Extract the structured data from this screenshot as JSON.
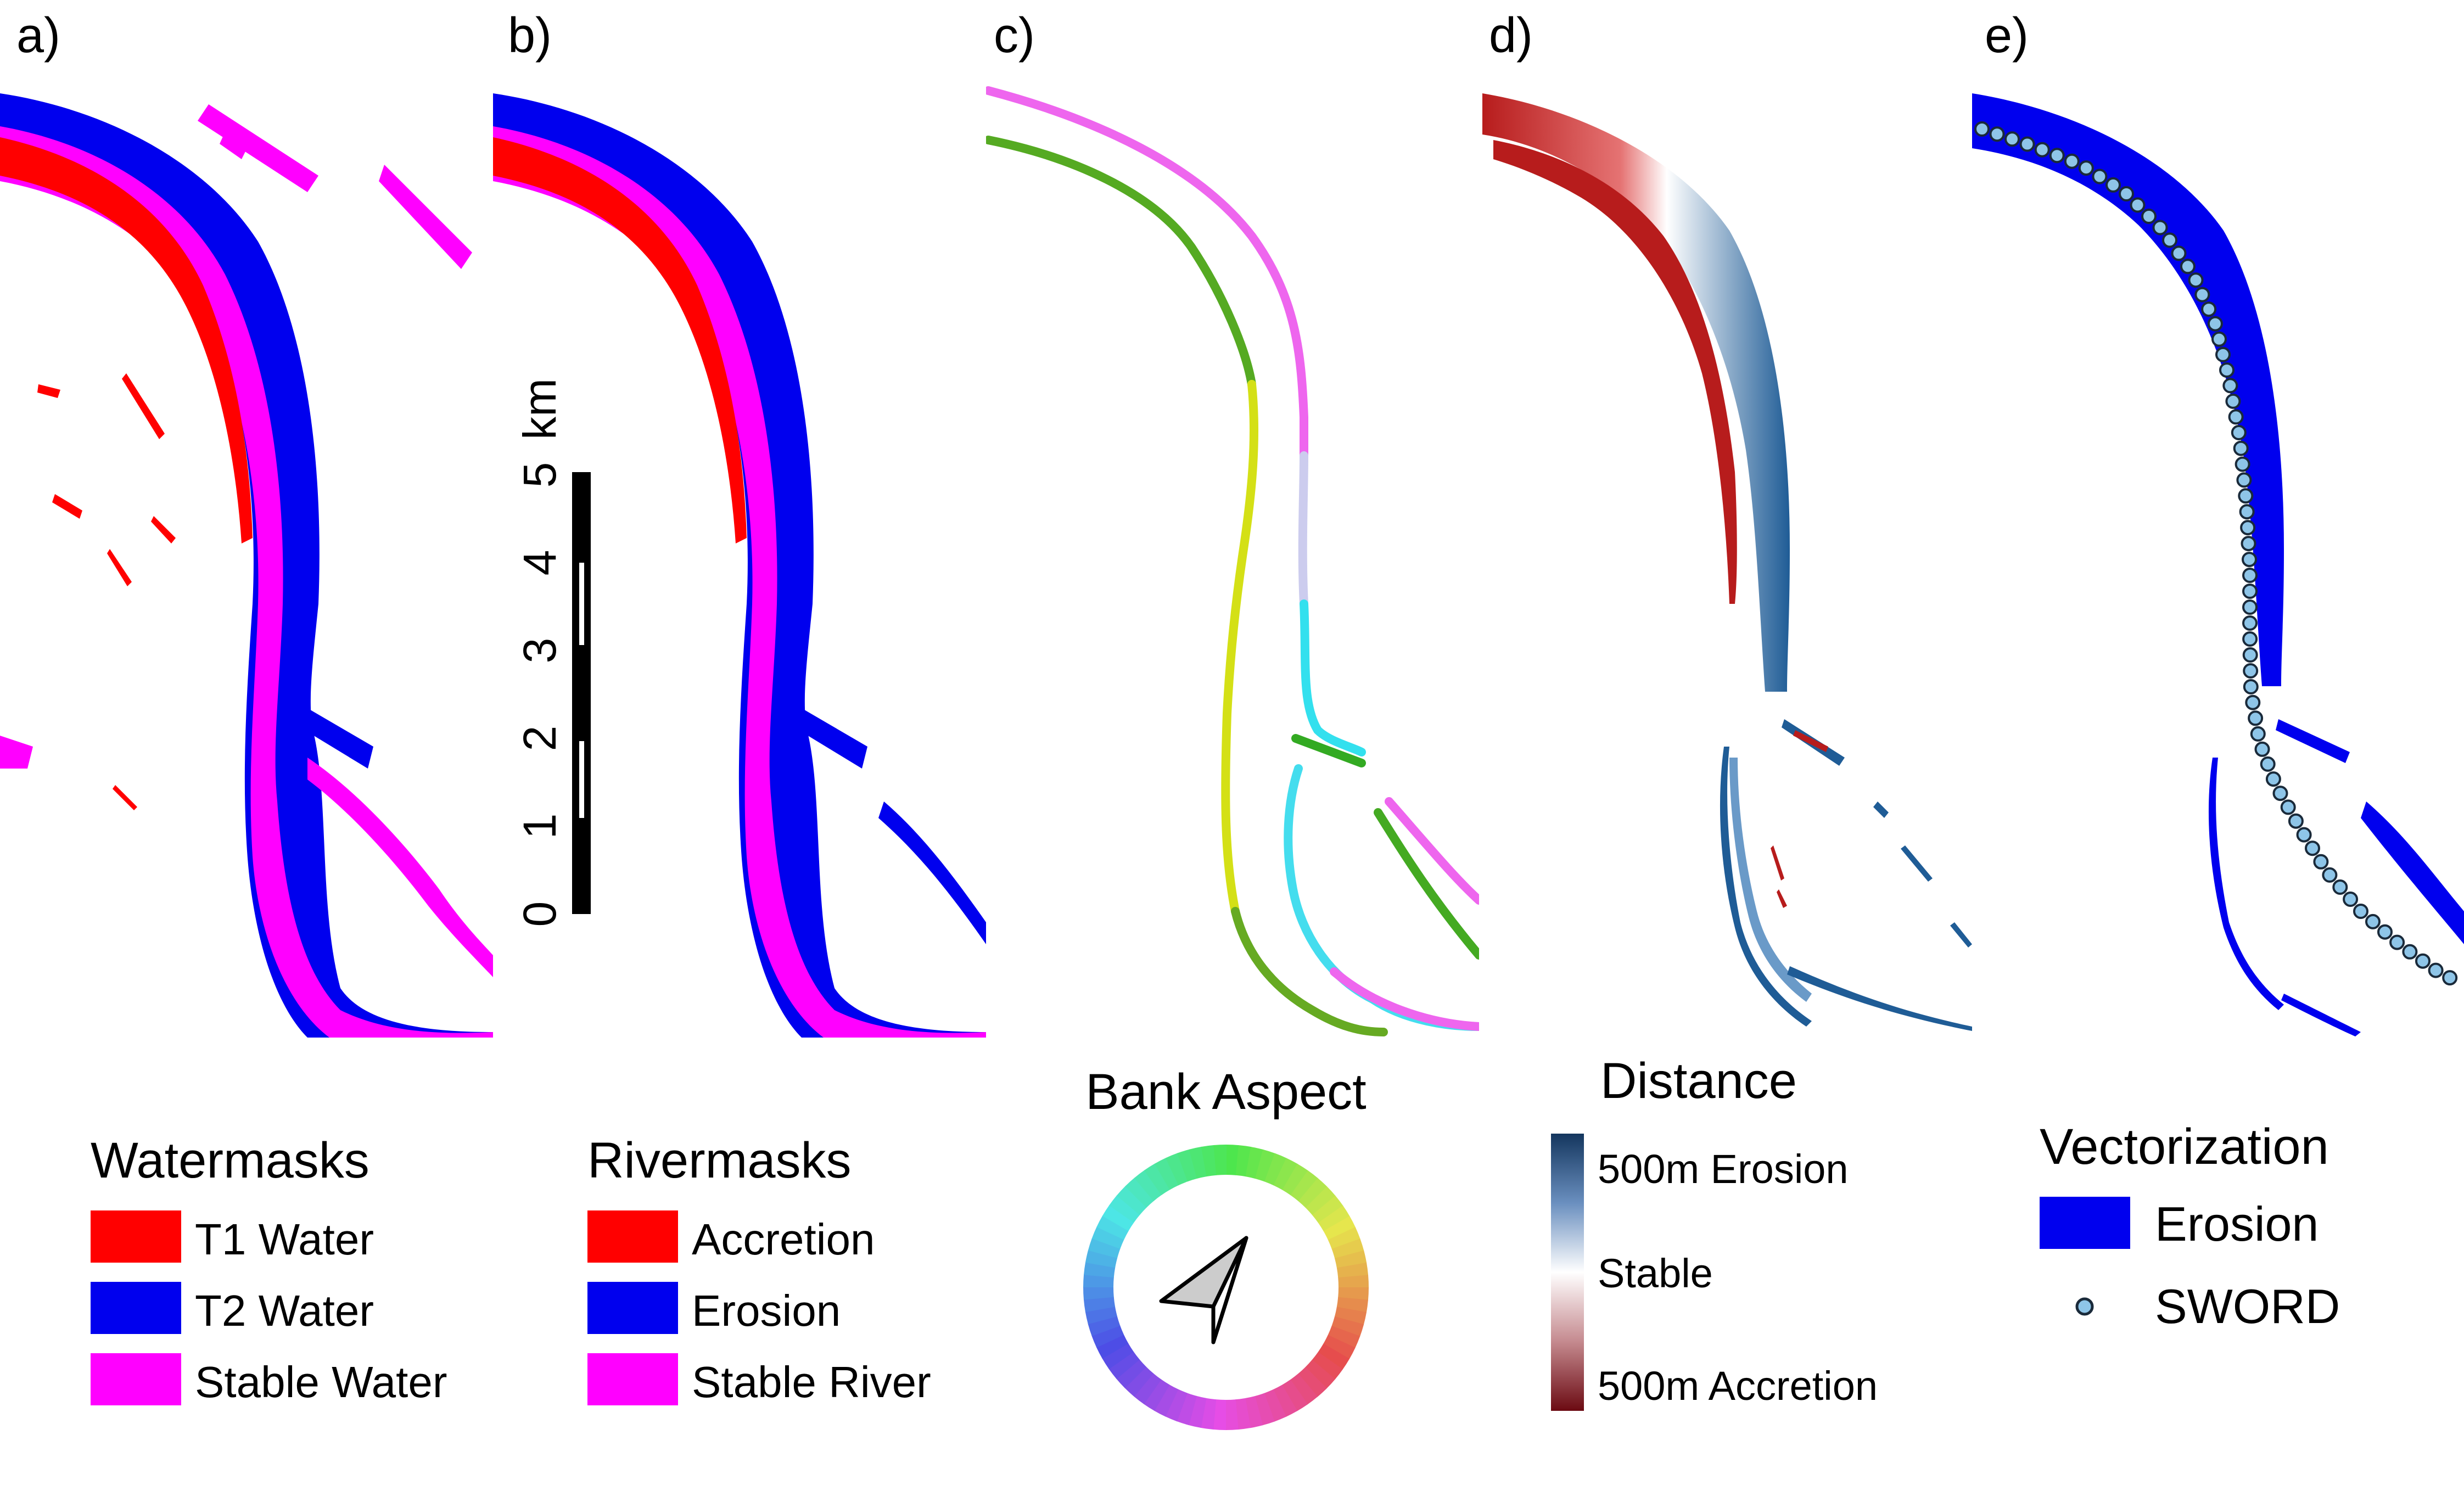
{
  "panels": [
    {
      "id": "a",
      "label": "a)"
    },
    {
      "id": "b",
      "label": "b)"
    },
    {
      "id": "c",
      "label": "c)"
    },
    {
      "id": "d",
      "label": "d)"
    },
    {
      "id": "e",
      "label": "e)"
    }
  ],
  "scale_bar": {
    "unit": "km",
    "ticks": [
      "0",
      "1",
      "2",
      "3",
      "4",
      "5"
    ]
  },
  "colors": {
    "t1_water": "#ff0000",
    "t2_water": "#0000ee",
    "stable_water": "#ff00ff",
    "accretion": "#ff0000",
    "erosion": "#0000ee",
    "stable_river": "#ff00ff",
    "sword_fill": "#8ec5e8",
    "sword_stroke": "#1a2a3a",
    "distance_erosion": "#14365e",
    "distance_stable": "#ffffff",
    "distance_accretion": "#6b0a12"
  },
  "legends": {
    "watermasks": {
      "title": "Watermasks",
      "items": [
        "T1 Water",
        "T2 Water",
        "Stable Water"
      ]
    },
    "rivermasks": {
      "title": "Rivermasks",
      "items": [
        "Accretion",
        "Erosion",
        "Stable River"
      ]
    },
    "bank_aspect": {
      "title": "Bank Aspect",
      "icon": "north-arrow-icon"
    },
    "distance": {
      "title": "Distance",
      "labels": [
        "500m Erosion",
        "Stable",
        "500m Accretion"
      ]
    },
    "vectorization": {
      "title": "Vectorization",
      "items": [
        "Erosion",
        "SWORD"
      ]
    }
  }
}
